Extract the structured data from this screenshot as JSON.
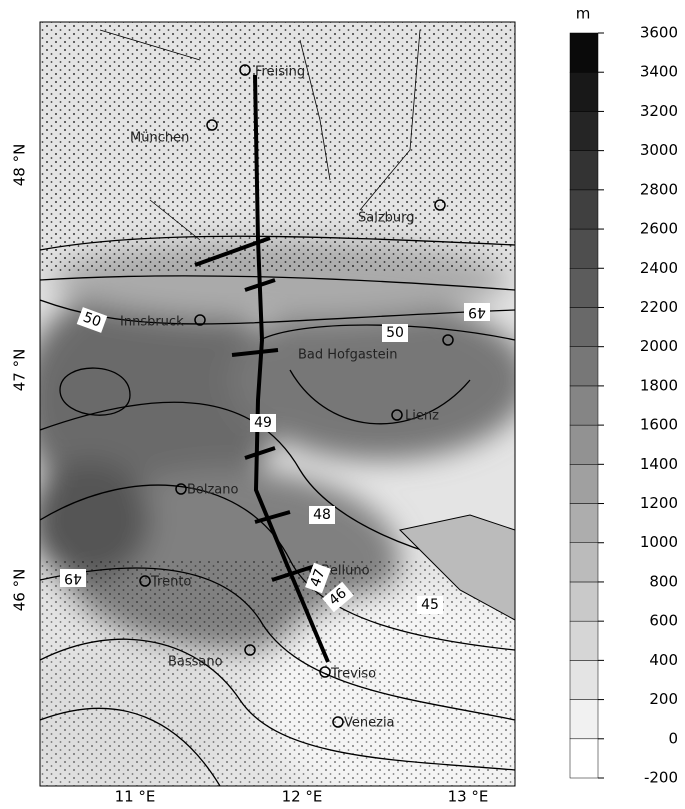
{
  "map": {
    "latitude_labels": [
      "48 °N",
      "47 °N",
      "46 °N"
    ],
    "longitude_labels": [
      "11 °E",
      "12 °E",
      "13 °E"
    ],
    "cities": [
      "Freising",
      "München",
      "Salzburg",
      "Innsbruck",
      "Bad Hofgastein",
      "Lienz",
      "Bolzano",
      "Trento",
      "Belluno",
      "Bassano",
      "Treviso",
      "Venezia"
    ],
    "contour_labels": [
      "50",
      "49",
      "50",
      "49",
      "48",
      "47",
      "46",
      "45",
      "49"
    ]
  },
  "colorbar": {
    "unit": "m",
    "ticks": [
      -200,
      0,
      200,
      400,
      600,
      800,
      1000,
      1200,
      1400,
      1600,
      1800,
      2000,
      2200,
      2400,
      2600,
      2800,
      3000,
      3200,
      3400,
      3600
    ]
  }
}
